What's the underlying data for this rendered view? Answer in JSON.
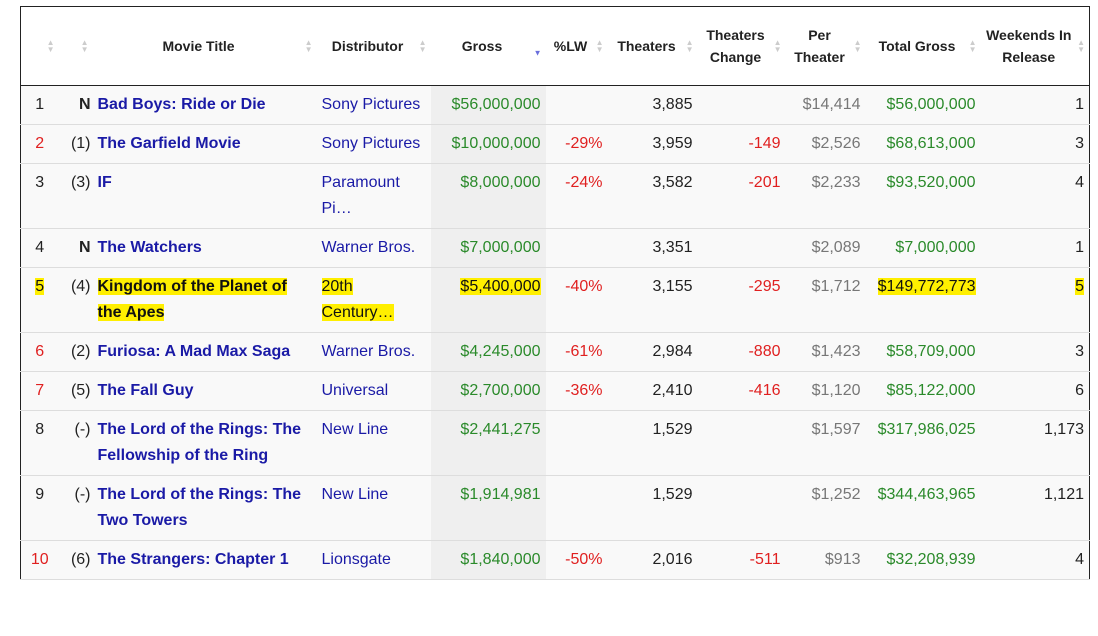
{
  "headers": [
    "",
    "",
    "Movie Title",
    "Distributor",
    "Gross",
    "%LW",
    "Theaters",
    "Theaters Change",
    "Per Theater",
    "Total Gross",
    "Weekends In Release"
  ],
  "rows": [
    {
      "rank": "1",
      "lw": "N",
      "title": "Bad Boys: Ride or Die",
      "distributor": "Sony Pictures",
      "gross": "$56,000,000",
      "pct_lw": "",
      "theaters": "3,885",
      "change": "",
      "per_theater": "$14,414",
      "total": "$56,000,000",
      "weeks": "1",
      "rank_color": "#222",
      "highlight": false
    },
    {
      "rank": "2",
      "lw": "(1)",
      "title": "The Garfield Movie",
      "distributor": "Sony Pictures",
      "gross": "$10,000,000",
      "pct_lw": "-29%",
      "theaters": "3,959",
      "change": "-149",
      "per_theater": "$2,526",
      "total": "$68,613,000",
      "weeks": "3",
      "rank_color": "#e02020",
      "highlight": false
    },
    {
      "rank": "3",
      "lw": "(3)",
      "title": "IF",
      "distributor": "Paramount Pi…",
      "gross": "$8,000,000",
      "pct_lw": "-24%",
      "theaters": "3,582",
      "change": "-201",
      "per_theater": "$2,233",
      "total": "$93,520,000",
      "weeks": "4",
      "rank_color": "#222",
      "highlight": false
    },
    {
      "rank": "4",
      "lw": "N",
      "title": "The Watchers",
      "distributor": "Warner Bros.",
      "gross": "$7,000,000",
      "pct_lw": "",
      "theaters": "3,351",
      "change": "",
      "per_theater": "$2,089",
      "total": "$7,000,000",
      "weeks": "1",
      "rank_color": "#222",
      "highlight": false
    },
    {
      "rank": "5",
      "lw": "(4)",
      "title": "Kingdom of the Planet of the Apes",
      "distributor": "20th Century…",
      "gross": "$5,400,000",
      "pct_lw": "-40%",
      "theaters": "3,155",
      "change": "-295",
      "per_theater": "$1,712",
      "total": "$149,772,773",
      "weeks": "5",
      "rank_color": "#e02020",
      "highlight": true
    },
    {
      "rank": "6",
      "lw": "(2)",
      "title": "Furiosa: A Mad Max Saga",
      "distributor": "Warner Bros.",
      "gross": "$4,245,000",
      "pct_lw": "-61%",
      "theaters": "2,984",
      "change": "-880",
      "per_theater": "$1,423",
      "total": "$58,709,000",
      "weeks": "3",
      "rank_color": "#e02020",
      "highlight": false
    },
    {
      "rank": "7",
      "lw": "(5)",
      "title": "The Fall Guy",
      "distributor": "Universal",
      "gross": "$2,700,000",
      "pct_lw": "-36%",
      "theaters": "2,410",
      "change": "-416",
      "per_theater": "$1,120",
      "total": "$85,122,000",
      "weeks": "6",
      "rank_color": "#e02020",
      "highlight": false
    },
    {
      "rank": "8",
      "lw": "(-)",
      "title": "The Lord of the Rings: The Fellowship of the Ring",
      "distributor": "New Line",
      "gross": "$2,441,275",
      "pct_lw": "",
      "theaters": "1,529",
      "change": "",
      "per_theater": "$1,597",
      "total": "$317,986,025",
      "weeks": "1,173",
      "rank_color": "#222",
      "highlight": false
    },
    {
      "rank": "9",
      "lw": "(-)",
      "title": "The Lord of the Rings: The Two Towers",
      "distributor": "New Line",
      "gross": "$1,914,981",
      "pct_lw": "",
      "theaters": "1,529",
      "change": "",
      "per_theater": "$1,252",
      "total": "$344,463,965",
      "weeks": "1,121",
      "rank_color": "#222",
      "highlight": false
    },
    {
      "rank": "10",
      "lw": "(6)",
      "title": "The Strangers: Chapter 1",
      "distributor": "Lionsgate",
      "gross": "$1,840,000",
      "pct_lw": "-50%",
      "theaters": "2,016",
      "change": "-511",
      "per_theater": "$913",
      "total": "$32,208,939",
      "weeks": "4",
      "rank_color": "#e02020",
      "highlight": false
    }
  ]
}
